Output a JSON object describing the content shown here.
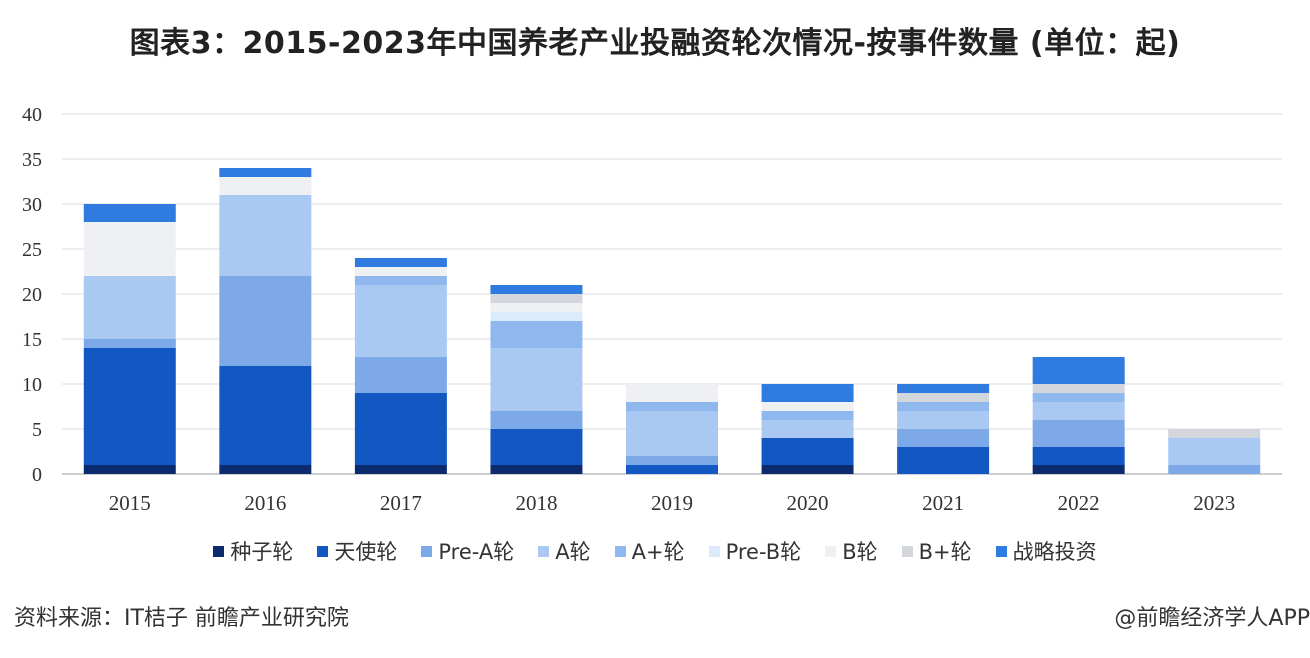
{
  "title": "图表3：2015-2023年中国养老产业投融资轮次情况-按事件数量 (单位：起)",
  "source": "资料来源：IT桔子 前瞻产业研究院",
  "brand": "@前瞻经济学人APP",
  "chart_data": {
    "type": "bar",
    "stacked": true,
    "title": "图表3：2015-2023年中国养老产业投融资轮次情况-按事件数量 (单位：起)",
    "xlabel": "",
    "ylabel": "",
    "ylim": [
      0,
      40
    ],
    "yticks": [
      0,
      5,
      10,
      15,
      20,
      25,
      30,
      35,
      40
    ],
    "grid": true,
    "legend_position": "bottom",
    "categories": [
      "2015",
      "2016",
      "2017",
      "2018",
      "2019",
      "2020",
      "2021",
      "2022",
      "2023"
    ],
    "series": [
      {
        "name": "种子轮",
        "color": "#0c2a6e",
        "values": [
          1,
          1,
          1,
          1,
          0,
          1,
          0,
          1,
          0
        ]
      },
      {
        "name": "天使轮",
        "color": "#1357c2",
        "values": [
          13,
          11,
          8,
          4,
          1,
          3,
          3,
          2,
          0
        ]
      },
      {
        "name": "Pre-A轮",
        "color": "#7da9e8",
        "values": [
          1,
          10,
          4,
          2,
          1,
          0,
          2,
          3,
          1
        ]
      },
      {
        "name": "A轮",
        "color": "#a9c9f3",
        "values": [
          7,
          9,
          8,
          7,
          5,
          2,
          2,
          2,
          3
        ]
      },
      {
        "name": "A+轮",
        "color": "#8fb8ee",
        "values": [
          0,
          0,
          1,
          3,
          1,
          1,
          1,
          1,
          0
        ]
      },
      {
        "name": "Pre-B轮",
        "color": "#dcebfb",
        "values": [
          0,
          0,
          0,
          1,
          0,
          0,
          0,
          0,
          0
        ]
      },
      {
        "name": "B轮",
        "color": "#eef0f3",
        "values": [
          6,
          2,
          1,
          1,
          2,
          1,
          0,
          0,
          0
        ]
      },
      {
        "name": "B+轮",
        "color": "#d3d6da",
        "values": [
          0,
          0,
          0,
          1,
          0,
          0,
          1,
          1,
          1
        ]
      },
      {
        "name": "战略投资",
        "color": "#2f7be0",
        "values": [
          2,
          1,
          1,
          1,
          0,
          2,
          1,
          3,
          0
        ]
      }
    ]
  }
}
